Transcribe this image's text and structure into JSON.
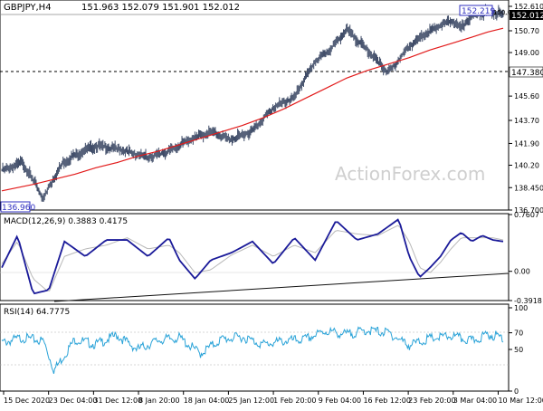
{
  "header": {
    "symbol_tf": "GBPJPY,H4",
    "ohlc": "151.963 152.079 151.901 152.012"
  },
  "watermark": "ActionForex.com",
  "price_panel": {
    "ticks": [
      {
        "label": "152.610",
        "value": 152.61
      },
      {
        "label": "150.70",
        "value": 150.7
      },
      {
        "label": "149.00",
        "value": 149.0
      },
      {
        "label": "147.380",
        "value": 147.38
      },
      {
        "label": "145.60",
        "value": 145.6
      },
      {
        "label": "143.70",
        "value": 143.7
      },
      {
        "label": "141.90",
        "value": 141.9
      },
      {
        "label": "140.20",
        "value": 140.2
      },
      {
        "label": "138.450",
        "value": 138.45
      },
      {
        "label": "136.700",
        "value": 136.7
      }
    ],
    "current_price": "152.012",
    "high_label": "152.219",
    "low_label": "136.960",
    "level_label": "147.380",
    "small_level": "150.0"
  },
  "macd_panel": {
    "title": "MACD(12,26,9) 0.3883 0.4175",
    "ticks": [
      {
        "label": "0.7607",
        "value": 0.7607
      },
      {
        "label": "0.00",
        "value": 0.0
      },
      {
        "label": "-0.3918",
        "value": -0.3918
      }
    ],
    "zero_label": "0.00"
  },
  "rsi_panel": {
    "title": "RSI(14) 64.7775",
    "ticks": [
      {
        "label": "100",
        "value": 100
      },
      {
        "label": "70",
        "value": 70
      },
      {
        "label": "50",
        "value": 50
      },
      {
        "label": "0",
        "value": 0
      }
    ]
  },
  "colors": {
    "candle": "#3d4a66",
    "ma": "#e21b1b",
    "macd": "#1a1a99",
    "signal": "#b8b8b8",
    "rsi": "#2aa3d8",
    "trend": "#111111"
  },
  "chart_data": [
    {
      "type": "line",
      "title": "GBPJPY,H4",
      "x_labels": [
        "15 Dec 2020",
        "23 Dec 04:00",
        "31 Dec 12:00",
        "8 Jan 20:00",
        "18 Jan 04:00",
        "25 Jan 12:00",
        "1 Feb 20:00",
        "9 Feb 04:00",
        "16 Feb 12:00",
        "23 Feb 20:00",
        "3 Mar 04:00",
        "10 Mar 12:00"
      ],
      "ylim": [
        136.7,
        152.61
      ],
      "series": [
        {
          "name": "price",
          "x": [
            0,
            4,
            8,
            10,
            12,
            15,
            18,
            22,
            28,
            32,
            36,
            40,
            44,
            48,
            52,
            56,
            60,
            63,
            66,
            70,
            74,
            78,
            82,
            86,
            88,
            90,
            93,
            96
          ],
          "y": [
            139.8,
            140.4,
            137.6,
            139.3,
            140.5,
            141.2,
            141.7,
            141.5,
            140.8,
            141.3,
            142.2,
            142.8,
            142.2,
            142.9,
            144.7,
            145.5,
            148.3,
            149.3,
            150.8,
            149.2,
            147.4,
            149.5,
            150.7,
            151.5,
            150.9,
            151.9,
            152.2,
            152.0
          ]
        },
        {
          "name": "MA",
          "x": [
            0,
            6,
            10,
            14,
            18,
            22,
            26,
            30,
            34,
            38,
            42,
            46,
            50,
            54,
            58,
            62,
            66,
            70,
            74,
            78,
            82,
            86,
            90,
            93,
            96
          ],
          "y": [
            138.2,
            138.7,
            139.1,
            139.5,
            140.0,
            140.4,
            140.9,
            141.3,
            141.8,
            142.3,
            142.8,
            143.3,
            143.9,
            144.6,
            145.4,
            146.2,
            147.0,
            147.6,
            148.1,
            148.6,
            149.2,
            149.7,
            150.2,
            150.6,
            150.9
          ]
        }
      ],
      "annotations": [
        "152.219",
        "136.960",
        "147.380"
      ]
    },
    {
      "type": "line",
      "title": "MACD(12,26,9) 0.3883 0.4175",
      "ylim": [
        -0.3918,
        0.7607
      ],
      "series": [
        {
          "name": "MACD",
          "x": [
            0,
            3,
            6,
            9,
            12,
            16,
            20,
            24,
            28,
            32,
            34,
            37,
            40,
            44,
            48,
            52,
            56,
            60,
            64,
            68,
            72,
            76,
            78,
            80,
            82,
            84,
            86,
            88,
            90,
            92,
            94,
            96
          ],
          "y": [
            0.05,
            0.48,
            -0.3,
            -0.25,
            0.4,
            0.2,
            0.42,
            0.42,
            0.2,
            0.45,
            0.15,
            -0.1,
            0.15,
            0.25,
            0.4,
            0.1,
            0.45,
            0.15,
            0.68,
            0.42,
            0.5,
            0.7,
            0.2,
            -0.08,
            0.05,
            0.2,
            0.42,
            0.52,
            0.4,
            0.48,
            0.42,
            0.4
          ]
        },
        {
          "name": "Signal",
          "x": [
            0,
            3,
            6,
            9,
            12,
            16,
            20,
            24,
            28,
            32,
            34,
            37,
            40,
            44,
            48,
            52,
            56,
            60,
            64,
            68,
            72,
            76,
            78,
            80,
            82,
            84,
            86,
            88,
            90,
            92,
            94,
            96
          ],
          "y": [
            0.1,
            0.4,
            -0.1,
            -0.28,
            0.2,
            0.3,
            0.35,
            0.45,
            0.3,
            0.35,
            0.25,
            -0.02,
            0.02,
            0.22,
            0.35,
            0.2,
            0.35,
            0.25,
            0.55,
            0.5,
            0.48,
            0.62,
            0.4,
            0.05,
            -0.02,
            0.12,
            0.3,
            0.45,
            0.45,
            0.45,
            0.45,
            0.42
          ]
        }
      ]
    },
    {
      "type": "line",
      "title": "RSI(14) 64.7775",
      "ylim": [
        0,
        100
      ],
      "series": [
        {
          "name": "RSI",
          "x": [
            0,
            4,
            8,
            10,
            14,
            18,
            22,
            26,
            30,
            34,
            38,
            42,
            46,
            50,
            54,
            58,
            62,
            66,
            70,
            74,
            78,
            82,
            86,
            90,
            93,
            96
          ],
          "y": [
            58,
            64,
            60,
            25,
            62,
            56,
            67,
            50,
            61,
            64,
            45,
            62,
            65,
            56,
            60,
            62,
            72,
            68,
            73,
            70,
            55,
            63,
            66,
            60,
            68,
            64.78
          ]
        }
      ]
    }
  ]
}
